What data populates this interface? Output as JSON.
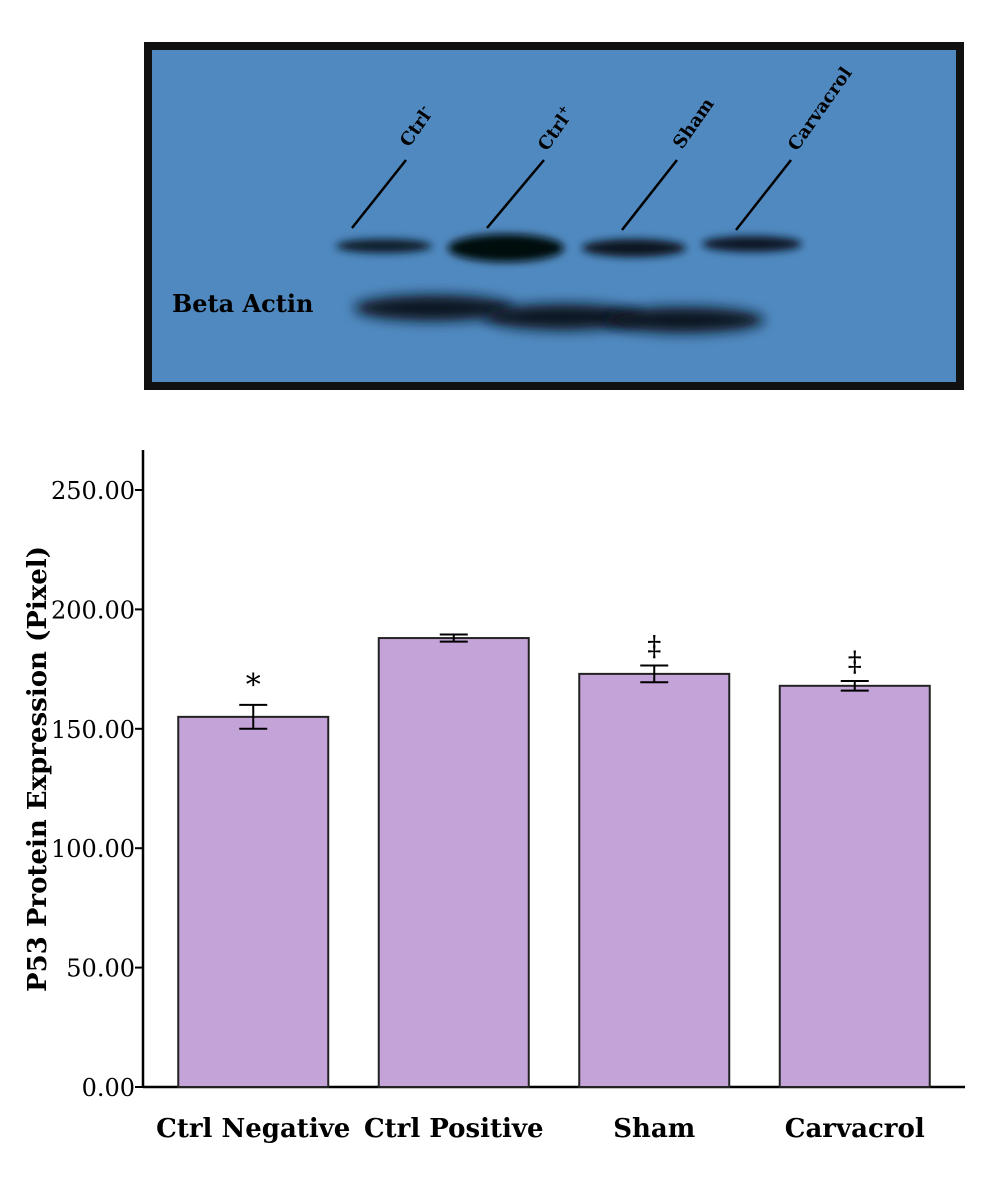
{
  "blot": {
    "lane_labels": [
      {
        "text": "Ctrl",
        "sup": "-"
      },
      {
        "text": "Ctrl",
        "sup": "+"
      },
      {
        "text": "Sham",
        "sup": ""
      },
      {
        "text": "Carvacrol",
        "sup": ""
      }
    ],
    "reference_band_label": "Beta Actin",
    "background_color": "#4f89bf",
    "border_color": "#111111"
  },
  "chart_data": {
    "type": "bar",
    "categories": [
      "Ctrl Negative",
      "Ctrl Positive",
      "Sham",
      "Carvacrol"
    ],
    "values": [
      155,
      188,
      173,
      168
    ],
    "errors": [
      5,
      1.5,
      3.5,
      2
    ],
    "annotations": [
      "*",
      "",
      "‡",
      "‡"
    ],
    "ylabel": "P53 Protein Expression (Pixel)",
    "xlabel": "",
    "title": "",
    "ylim": [
      0,
      250
    ],
    "yticks": [
      "0.00",
      "50.00",
      "100.00",
      "150.00",
      "200.00",
      "250.00"
    ],
    "grid": false,
    "bar_color": "#c4a3d8",
    "bar_edge_color": "#222222"
  }
}
